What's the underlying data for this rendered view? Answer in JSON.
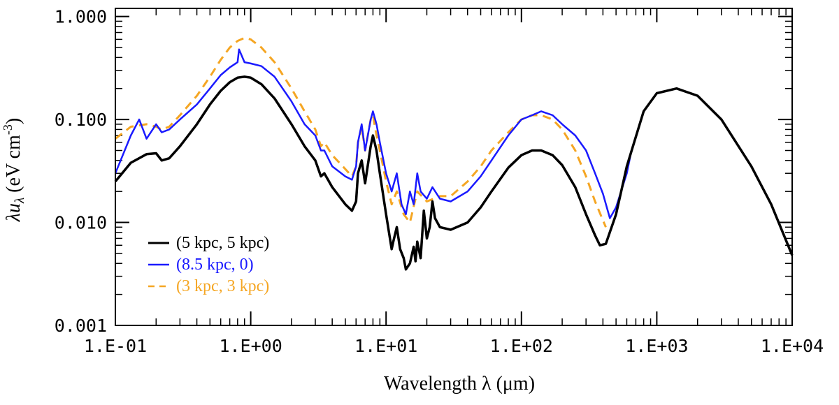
{
  "chart_data": {
    "type": "line",
    "title": "",
    "xlabel": "Wavelength λ (μm)",
    "ylabel": "λu_λ (eV cm^-3)",
    "ylabel_parts": {
      "lambda": "λ",
      "u": "u",
      "sub": "λ",
      "unit": " (eV cm",
      "exp": "-3",
      "close": ")"
    },
    "xscale": "log",
    "yscale": "log",
    "xlim": [
      0.1,
      10000
    ],
    "ylim": [
      0.001,
      1.2
    ],
    "xticks": [
      0.1,
      1,
      10,
      100,
      1000,
      10000
    ],
    "xtick_labels": [
      "1.E-01",
      "1.E+00",
      "1.E+01",
      "1.E+02",
      "1.E+03",
      "1.E+04"
    ],
    "yticks": [
      0.001,
      0.01,
      0.1,
      1
    ],
    "ytick_labels": [
      "0.001",
      "0.010",
      "0.100",
      "1.000"
    ],
    "grid": false,
    "legend_position": "bottom-left",
    "series": [
      {
        "name": "(5 kpc, 5 kpc)",
        "color": "#000000",
        "style": "solid",
        "x": [
          0.1,
          0.13,
          0.17,
          0.2,
          0.22,
          0.25,
          0.3,
          0.4,
          0.5,
          0.6,
          0.7,
          0.8,
          0.9,
          1.0,
          1.2,
          1.5,
          2.0,
          2.5,
          3.0,
          3.3,
          3.5,
          4.0,
          5.0,
          5.6,
          6.0,
          6.2,
          6.6,
          7.0,
          7.7,
          8.0,
          8.5,
          9.0,
          10.0,
          11.0,
          11.3,
          12.0,
          12.7,
          13.5,
          14.0,
          15.0,
          16.0,
          16.5,
          17.0,
          18.0,
          19.0,
          20.0,
          21.0,
          22.0,
          23.0,
          25.0,
          30.0,
          40.0,
          50.0,
          60.0,
          80.0,
          100,
          120,
          140,
          170,
          200,
          250,
          300,
          350,
          380,
          420,
          500,
          600,
          800,
          1000,
          1400,
          2000,
          3000,
          5000,
          7000,
          10000
        ],
        "y": [
          0.025,
          0.038,
          0.046,
          0.047,
          0.04,
          0.042,
          0.055,
          0.09,
          0.14,
          0.19,
          0.23,
          0.255,
          0.26,
          0.255,
          0.22,
          0.16,
          0.09,
          0.055,
          0.04,
          0.028,
          0.03,
          0.022,
          0.015,
          0.013,
          0.016,
          0.03,
          0.04,
          0.024,
          0.055,
          0.07,
          0.05,
          0.03,
          0.012,
          0.0055,
          0.0065,
          0.009,
          0.0055,
          0.0045,
          0.0035,
          0.004,
          0.0058,
          0.0042,
          0.0065,
          0.0045,
          0.013,
          0.007,
          0.009,
          0.016,
          0.011,
          0.009,
          0.0085,
          0.01,
          0.014,
          0.02,
          0.034,
          0.045,
          0.05,
          0.05,
          0.045,
          0.036,
          0.022,
          0.012,
          0.0075,
          0.006,
          0.0062,
          0.012,
          0.035,
          0.12,
          0.18,
          0.2,
          0.17,
          0.1,
          0.035,
          0.015,
          0.0048
        ]
      },
      {
        "name": "(8.5 kpc, 0)",
        "color": "#1a1aff",
        "style": "solid",
        "x": [
          0.1,
          0.13,
          0.15,
          0.17,
          0.2,
          0.22,
          0.25,
          0.3,
          0.4,
          0.5,
          0.6,
          0.7,
          0.8,
          0.82,
          0.9,
          1.0,
          1.2,
          1.5,
          2.0,
          2.5,
          3.0,
          3.3,
          3.5,
          4.0,
          5.0,
          5.6,
          6.0,
          6.2,
          6.6,
          7.0,
          7.7,
          8.0,
          8.5,
          9.0,
          10.0,
          11.0,
          12.0,
          13.0,
          14.0,
          15.0,
          16.0,
          17.0,
          18.0,
          20.0,
          22.0,
          25.0,
          30.0,
          40.0,
          50.0,
          60.0,
          80.0,
          100,
          120,
          140,
          170,
          200,
          250,
          300,
          350,
          400,
          450,
          500,
          600,
          650
        ],
        "y": [
          0.03,
          0.07,
          0.1,
          0.065,
          0.09,
          0.075,
          0.08,
          0.1,
          0.14,
          0.2,
          0.27,
          0.32,
          0.36,
          0.48,
          0.36,
          0.35,
          0.33,
          0.26,
          0.15,
          0.09,
          0.07,
          0.05,
          0.05,
          0.035,
          0.028,
          0.026,
          0.035,
          0.06,
          0.09,
          0.05,
          0.1,
          0.12,
          0.09,
          0.06,
          0.03,
          0.02,
          0.03,
          0.015,
          0.012,
          0.02,
          0.015,
          0.03,
          0.02,
          0.017,
          0.022,
          0.017,
          0.016,
          0.02,
          0.028,
          0.04,
          0.07,
          0.1,
          0.11,
          0.12,
          0.11,
          0.09,
          0.07,
          0.05,
          0.03,
          0.019,
          0.011,
          0.014,
          0.03,
          0.05
        ]
      },
      {
        "name": "(3 kpc, 3 kpc)",
        "color": "#f5a623",
        "style": "dashed",
        "x": [
          0.1,
          0.13,
          0.17,
          0.2,
          0.22,
          0.25,
          0.3,
          0.4,
          0.5,
          0.6,
          0.7,
          0.8,
          0.9,
          1.0,
          1.2,
          1.5,
          2.0,
          2.5,
          3.0,
          3.3,
          3.5,
          4.0,
          5.0,
          5.6,
          6.0,
          6.2,
          6.6,
          7.0,
          7.7,
          8.0,
          8.5,
          9.0,
          10.0,
          11.0,
          12.0,
          13.5,
          15.0,
          17.0,
          20.0,
          25.0,
          30.0,
          40.0,
          50.0,
          60.0,
          80.0,
          100,
          120,
          140,
          170,
          200,
          250,
          300,
          350,
          420
        ],
        "y": [
          0.065,
          0.085,
          0.09,
          0.085,
          0.08,
          0.085,
          0.11,
          0.17,
          0.26,
          0.38,
          0.5,
          0.58,
          0.62,
          0.6,
          0.5,
          0.36,
          0.2,
          0.12,
          0.08,
          0.055,
          0.06,
          0.045,
          0.033,
          0.028,
          0.035,
          0.06,
          0.085,
          0.05,
          0.1,
          0.11,
          0.07,
          0.05,
          0.025,
          0.015,
          0.02,
          0.012,
          0.01,
          0.02,
          0.016,
          0.018,
          0.018,
          0.025,
          0.035,
          0.05,
          0.075,
          0.1,
          0.11,
          0.11,
          0.1,
          0.08,
          0.05,
          0.028,
          0.016,
          0.009
        ]
      }
    ]
  }
}
